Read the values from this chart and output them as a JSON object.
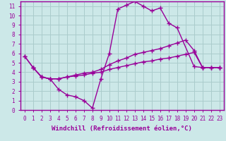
{
  "background_color": "#cce8e8",
  "grid_color": "#aacccc",
  "line_color": "#990099",
  "marker": "+",
  "markersize": 4,
  "linewidth": 1.0,
  "xlabel": "Windchill (Refroidissement éolien,°C)",
  "xlabel_fontsize": 6.5,
  "tick_fontsize": 5.5,
  "xlim": [
    -0.5,
    23.5
  ],
  "ylim": [
    0,
    11.5
  ],
  "xticks": [
    0,
    1,
    2,
    3,
    4,
    5,
    6,
    7,
    8,
    9,
    10,
    11,
    12,
    13,
    14,
    15,
    16,
    17,
    18,
    19,
    20,
    21,
    22,
    23
  ],
  "yticks": [
    0,
    1,
    2,
    3,
    4,
    5,
    6,
    7,
    8,
    9,
    10,
    11
  ],
  "line1_x": [
    0,
    1,
    2,
    3,
    4,
    5,
    6,
    7,
    8,
    9,
    10,
    11,
    12,
    13,
    14,
    15,
    16,
    17,
    18,
    20,
    21,
    22,
    23
  ],
  "line1_y": [
    5.7,
    4.5,
    3.5,
    3.3,
    2.2,
    1.6,
    1.4,
    1.0,
    0.2,
    3.3,
    6.0,
    10.7,
    11.1,
    11.5,
    11.0,
    10.5,
    10.8,
    9.2,
    8.7,
    4.6,
    4.5,
    4.5,
    4.5
  ],
  "line2_x": [
    0,
    1,
    2,
    3,
    4,
    5,
    6,
    7,
    8,
    9,
    10,
    11,
    12,
    13,
    14,
    15,
    16,
    17,
    18,
    19,
    20,
    21,
    22,
    23
  ],
  "line2_y": [
    5.7,
    4.5,
    3.5,
    3.3,
    3.3,
    3.5,
    3.7,
    3.9,
    4.0,
    4.3,
    4.8,
    5.2,
    5.5,
    5.9,
    6.1,
    6.3,
    6.5,
    6.8,
    7.1,
    7.4,
    6.3,
    4.5,
    4.5,
    4.5
  ],
  "line3_x": [
    1,
    2,
    3,
    4,
    5,
    6,
    7,
    8,
    9,
    10,
    11,
    12,
    13,
    14,
    15,
    16,
    17,
    18,
    19,
    20,
    21,
    22,
    23
  ],
  "line3_y": [
    4.5,
    3.5,
    3.3,
    3.3,
    3.5,
    3.6,
    3.7,
    3.9,
    4.0,
    4.3,
    4.5,
    4.7,
    4.9,
    5.1,
    5.2,
    5.4,
    5.5,
    5.7,
    5.9,
    6.1,
    4.5,
    4.5,
    4.5
  ]
}
